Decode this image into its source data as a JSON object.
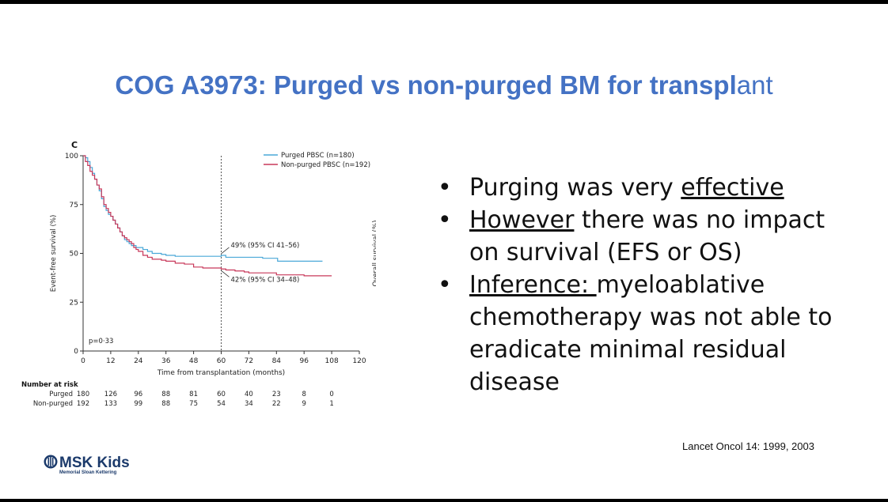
{
  "slide": {
    "title_main": "COG A3973: Purged vs non-purged BM for transpl",
    "title_tail": "ant",
    "bullets": [
      {
        "pre": "Purging was very ",
        "underlined": "effective",
        "post": ""
      },
      {
        "pre": "",
        "underlined": "However",
        "post": " there was no impact on survival (EFS or OS)"
      },
      {
        "pre": "",
        "underlined": "Inference: ",
        "post": "myeloablative chemotherapy was not able to eradicate minimal residual disease"
      }
    ],
    "bullet_char": "•",
    "reference": "Lancet Oncol 14: 1999, 2003",
    "logo": {
      "name": "MSK Kids",
      "subtitle": "Memorial Sloan Kettering"
    },
    "title_color": "#4472c4"
  },
  "chart_data": {
    "type": "line",
    "panel_label": "C",
    "xlabel": "Time from transplantation (months)",
    "ylabel": "Event-free survival (%)",
    "ylabel_right": "Overall survival (%)",
    "xlim": [
      0,
      120
    ],
    "ylim": [
      0,
      100
    ],
    "xticks": [
      0,
      12,
      24,
      36,
      48,
      60,
      72,
      84,
      96,
      108,
      120
    ],
    "yticks": [
      0,
      25,
      50,
      75,
      100
    ],
    "vline_x": 60,
    "p_value": "p=0·33",
    "series": [
      {
        "name": "Purged PBSC (n=180)",
        "color": "#4aa8d8",
        "x": [
          0,
          1,
          2,
          3,
          4,
          5,
          6,
          7,
          8,
          9,
          10,
          11,
          12,
          13,
          14,
          15,
          16,
          17,
          18,
          19,
          20,
          21,
          22,
          23,
          24,
          26,
          28,
          30,
          32,
          34,
          36,
          40,
          44,
          48,
          52,
          56,
          60,
          62,
          66,
          72,
          78,
          84,
          84.5,
          90,
          96,
          104
        ],
        "y": [
          100,
          99,
          97,
          94,
          91,
          88,
          85,
          82,
          78,
          74,
          72,
          70,
          69,
          67,
          65,
          63,
          61,
          59,
          57,
          56,
          55,
          54,
          54,
          53,
          53,
          52,
          51,
          50,
          50,
          49.5,
          49,
          48.5,
          48.5,
          48.5,
          48.5,
          48.5,
          49,
          48,
          48,
          48,
          47.5,
          47.5,
          46,
          46,
          46,
          46
        ]
      },
      {
        "name": "Non-purged PBSC (n=192)",
        "color": "#c8385a",
        "x": [
          0,
          1,
          2,
          3,
          4,
          5,
          6,
          7,
          8,
          9,
          10,
          11,
          12,
          13,
          14,
          15,
          16,
          17,
          18,
          19,
          20,
          21,
          22,
          23,
          24,
          26,
          28,
          30,
          32,
          34,
          36,
          40,
          44,
          48,
          52,
          56,
          60,
          62,
          66,
          70,
          72,
          78,
          84,
          90,
          96,
          100,
          108
        ],
        "y": [
          100,
          97,
          95,
          92,
          90,
          88,
          85,
          83,
          79,
          75,
          73,
          71,
          69,
          67,
          65,
          63,
          61,
          59,
          58,
          57,
          56,
          55,
          53,
          52,
          51,
          49,
          48,
          47,
          47,
          46.5,
          46,
          45,
          44.5,
          43,
          42.5,
          42.5,
          42,
          41.5,
          41,
          40.5,
          40,
          40,
          39,
          39,
          38.5,
          38.5,
          38.5
        ]
      }
    ],
    "annotations": [
      {
        "text": "49% (95% CI 41–56)",
        "x": 60,
        "y": 49
      },
      {
        "text": "42% (95% CI 34–48)",
        "x": 60,
        "y": 42
      }
    ],
    "risk_table": {
      "header": "Number at risk",
      "times": [
        0,
        12,
        24,
        36,
        48,
        60,
        72,
        84,
        96,
        108
      ],
      "rows": [
        {
          "label": "Purged",
          "values": [
            180,
            126,
            96,
            88,
            81,
            60,
            40,
            23,
            8,
            0
          ]
        },
        {
          "label": "Non-purged",
          "values": [
            192,
            133,
            99,
            88,
            75,
            54,
            34,
            22,
            9,
            1
          ]
        }
      ]
    }
  }
}
